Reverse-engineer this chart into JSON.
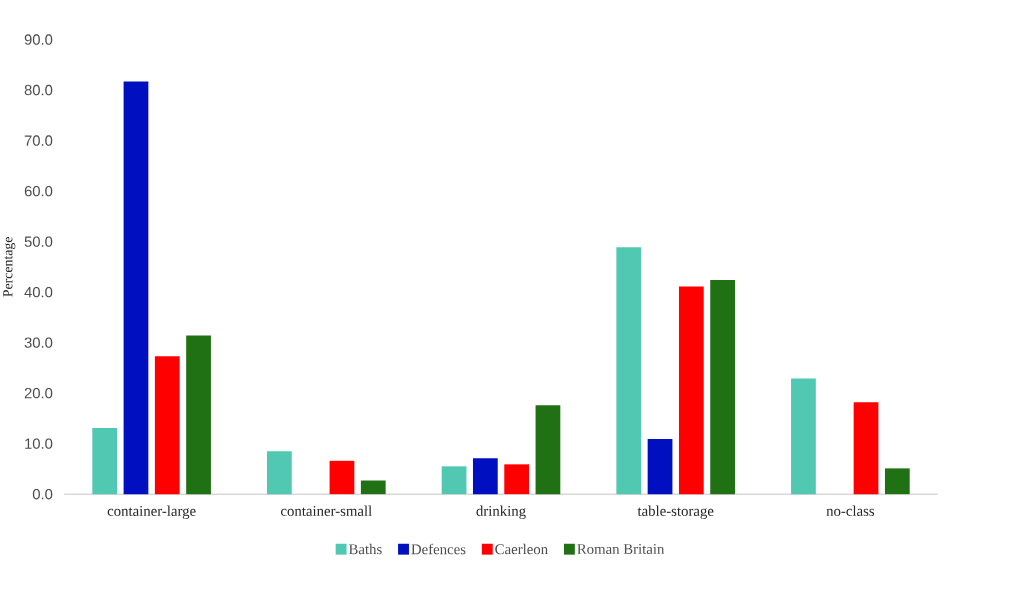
{
  "chart_data": {
    "type": "bar",
    "ylabel": "Percentage",
    "categories": [
      "container-large",
      "container-small",
      "drinking",
      "table-storage",
      "no-class"
    ],
    "series": [
      {
        "name": "Baths",
        "color": "#50c8b2",
        "values": [
          13.1,
          8.5,
          5.5,
          48.9,
          22.9
        ]
      },
      {
        "name": "Defences",
        "color": "#0010c0",
        "values": [
          81.7,
          0,
          7.1,
          10.9,
          0
        ]
      },
      {
        "name": "Caerleon",
        "color": "#ff0000",
        "values": [
          27.3,
          6.6,
          5.9,
          41.1,
          18.2
        ]
      },
      {
        "name": "Roman Britain",
        "color": "#207014",
        "values": [
          31.4,
          2.7,
          17.6,
          42.4,
          5.1
        ]
      }
    ],
    "ylim": [
      0,
      90
    ],
    "yticks": [
      {
        "value": 0,
        "label": "0.0"
      },
      {
        "value": 10,
        "label": "10.0"
      },
      {
        "value": 20,
        "label": "20.0"
      },
      {
        "value": 30,
        "label": "30.0"
      },
      {
        "value": 40,
        "label": "40.0"
      },
      {
        "value": 50,
        "label": "50.0"
      },
      {
        "value": 60,
        "label": "60.0"
      },
      {
        "value": 70,
        "label": "70.0"
      },
      {
        "value": 80,
        "label": "80.0"
      },
      {
        "value": 90,
        "label": "90.0"
      }
    ],
    "grid": false,
    "legend": "bottom"
  }
}
